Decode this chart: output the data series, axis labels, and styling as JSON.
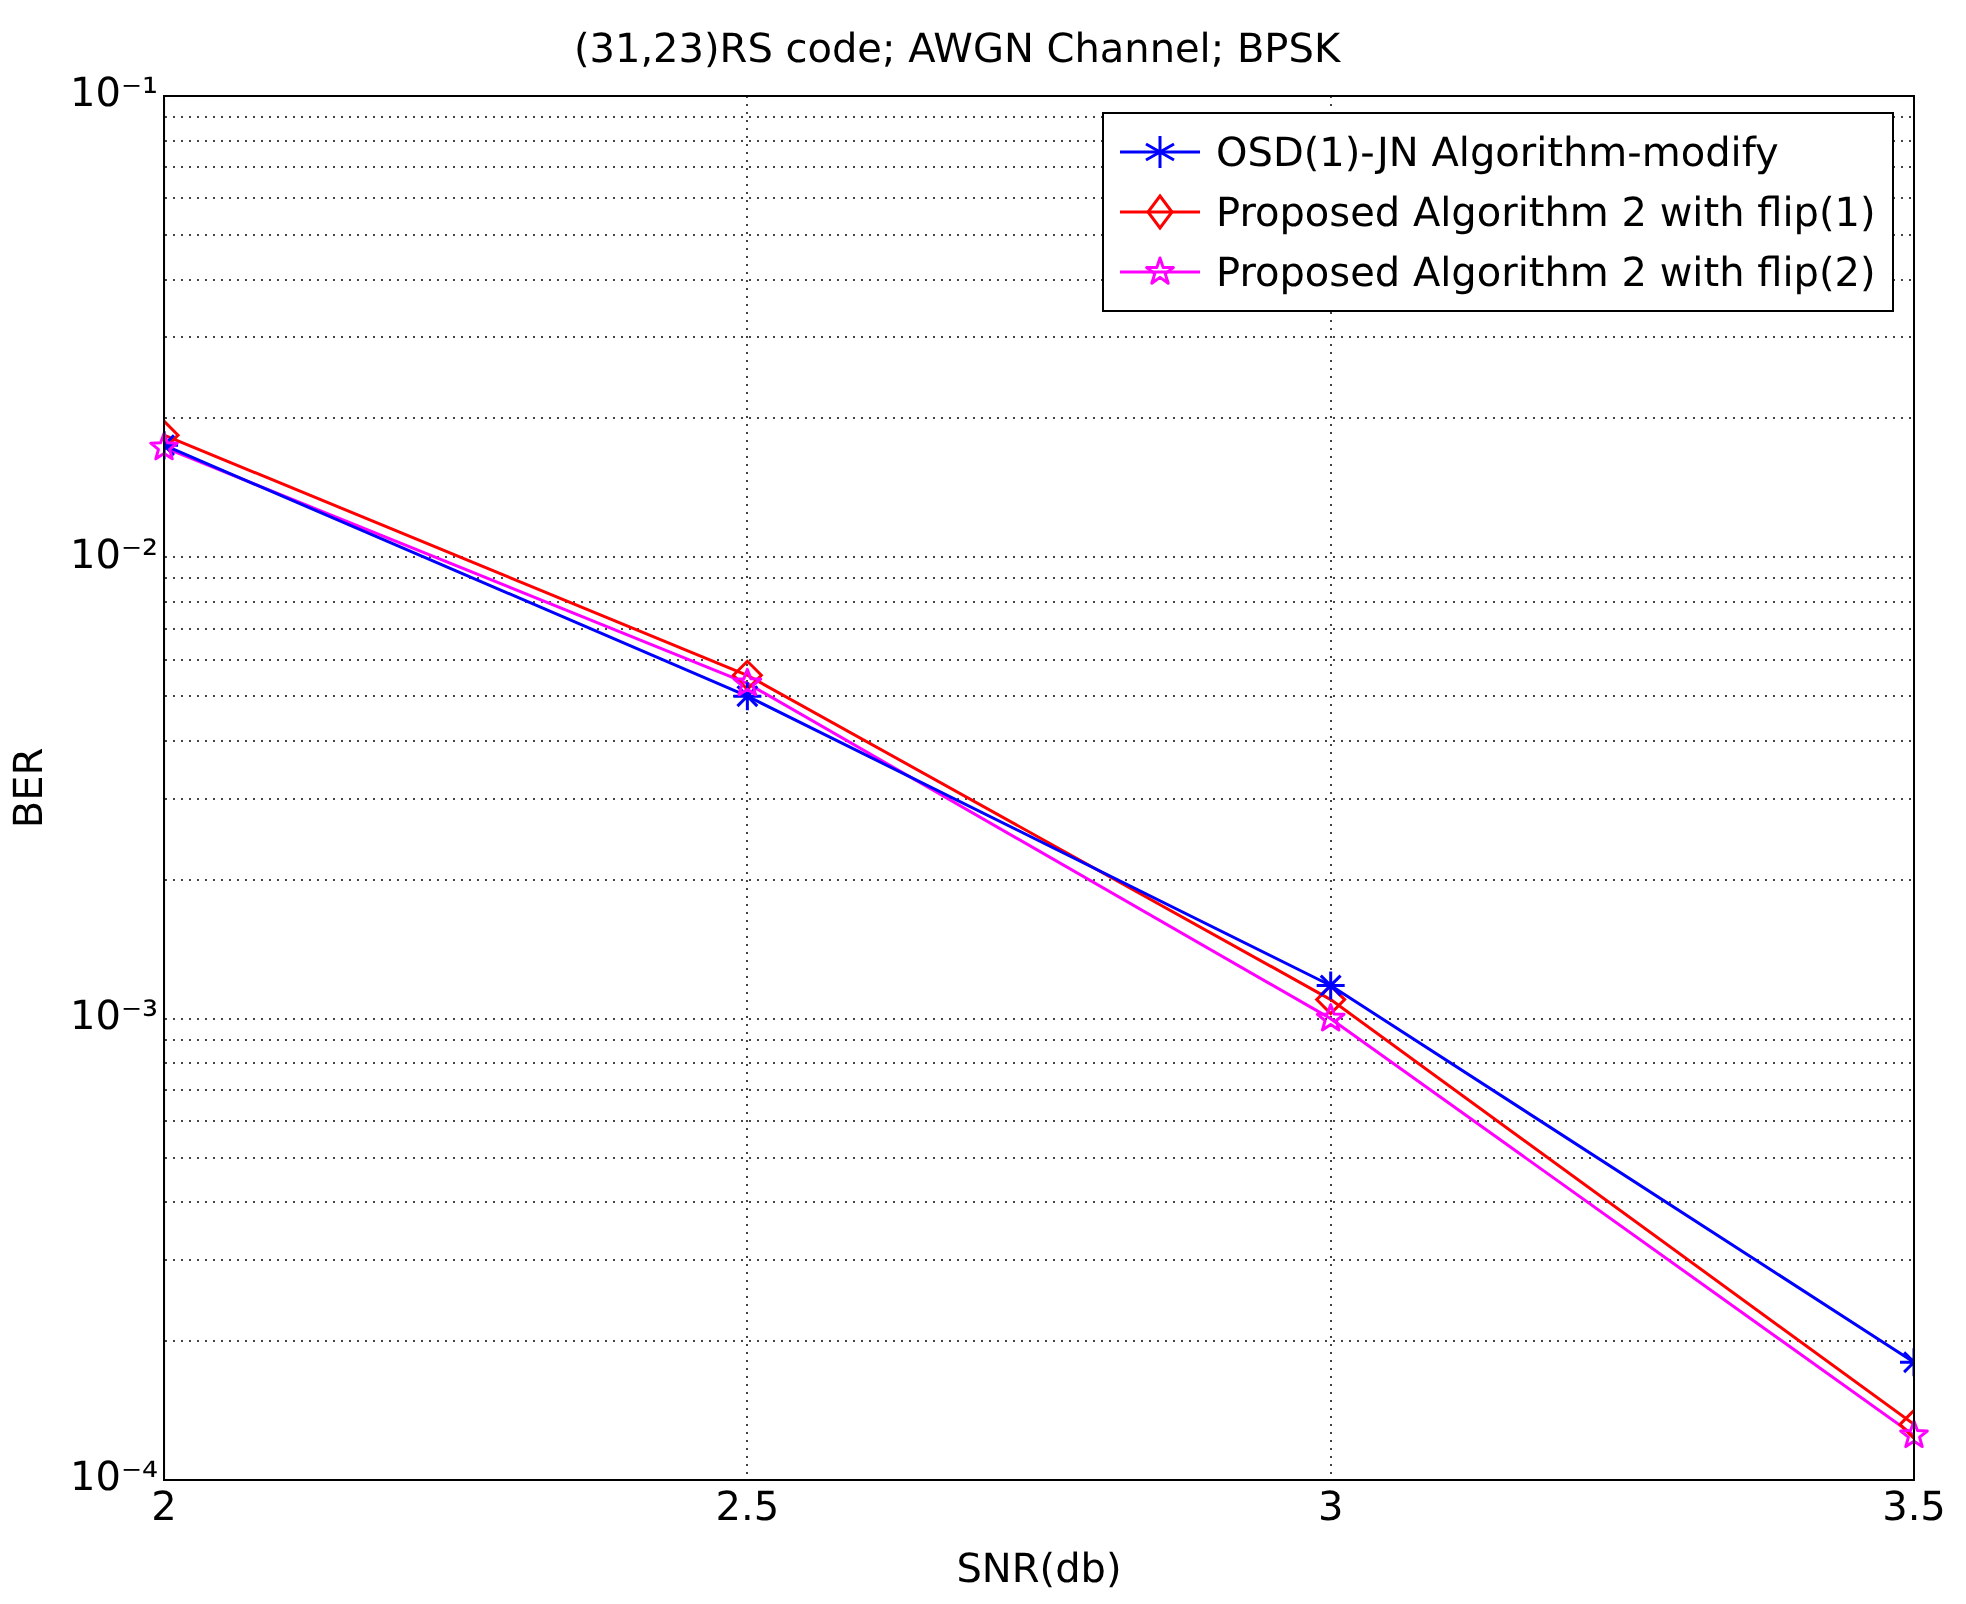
{
  "chart_data": {
    "type": "line",
    "title": "(31,23)RS code; AWGN Channel; BPSK",
    "xlabel": "SNR(db)",
    "ylabel": "BER",
    "x": [
      2,
      2.5,
      3,
      3.5
    ],
    "series": [
      {
        "name": "OSD(1)-JN Algorithm-modify",
        "color": "#0000ff",
        "marker": "cross",
        "values": [
          0.0175,
          0.005,
          0.00118,
          0.00018
        ]
      },
      {
        "name": "Proposed Algorithm 2 with flip(1)",
        "color": "#ff0000",
        "marker": "diamond",
        "values": [
          0.0184,
          0.00555,
          0.0011,
          0.000132
        ]
      },
      {
        "name": "Proposed Algorithm 2 with flip(2)",
        "color": "#ff00ff",
        "marker": "star",
        "values": [
          0.0173,
          0.00533,
          0.001,
          0.000125
        ]
      }
    ],
    "log": "y",
    "xlim": [
      2,
      3.5
    ],
    "xticks": [
      2,
      2.5,
      3,
      3.5
    ],
    "ylim": [
      0.0001,
      0.1
    ],
    "yticks": [
      {
        "value": 0.0001,
        "label": "10⁻⁴"
      },
      {
        "value": 0.0002,
        "label": null
      },
      {
        "value": 0.0003,
        "label": null
      },
      {
        "value": 0.0004,
        "label": null
      },
      {
        "value": 0.0005,
        "label": null
      },
      {
        "value": 0.0006,
        "label": null
      },
      {
        "value": 0.0007,
        "label": null
      },
      {
        "value": 0.0008,
        "label": null
      },
      {
        "value": 0.0009,
        "label": null
      },
      {
        "value": 0.001,
        "label": "10⁻³"
      },
      {
        "value": 0.002,
        "label": null
      },
      {
        "value": 0.003,
        "label": null
      },
      {
        "value": 0.004,
        "label": null
      },
      {
        "value": 0.005,
        "label": null
      },
      {
        "value": 0.006,
        "label": null
      },
      {
        "value": 0.007,
        "label": null
      },
      {
        "value": 0.008,
        "label": null
      },
      {
        "value": 0.009,
        "label": null
      },
      {
        "value": 0.01,
        "label": "10⁻²"
      },
      {
        "value": 0.02,
        "label": null
      },
      {
        "value": 0.03,
        "label": null
      },
      {
        "value": 0.04,
        "label": null
      },
      {
        "value": 0.05,
        "label": null
      },
      {
        "value": 0.06,
        "label": null
      },
      {
        "value": 0.07,
        "label": null
      },
      {
        "value": 0.08,
        "label": null
      },
      {
        "value": 0.09,
        "label": null
      },
      {
        "value": 0.1,
        "label": "10⁻¹"
      }
    ],
    "grid": true,
    "legend": "top right",
    "line_style": "solid"
  }
}
